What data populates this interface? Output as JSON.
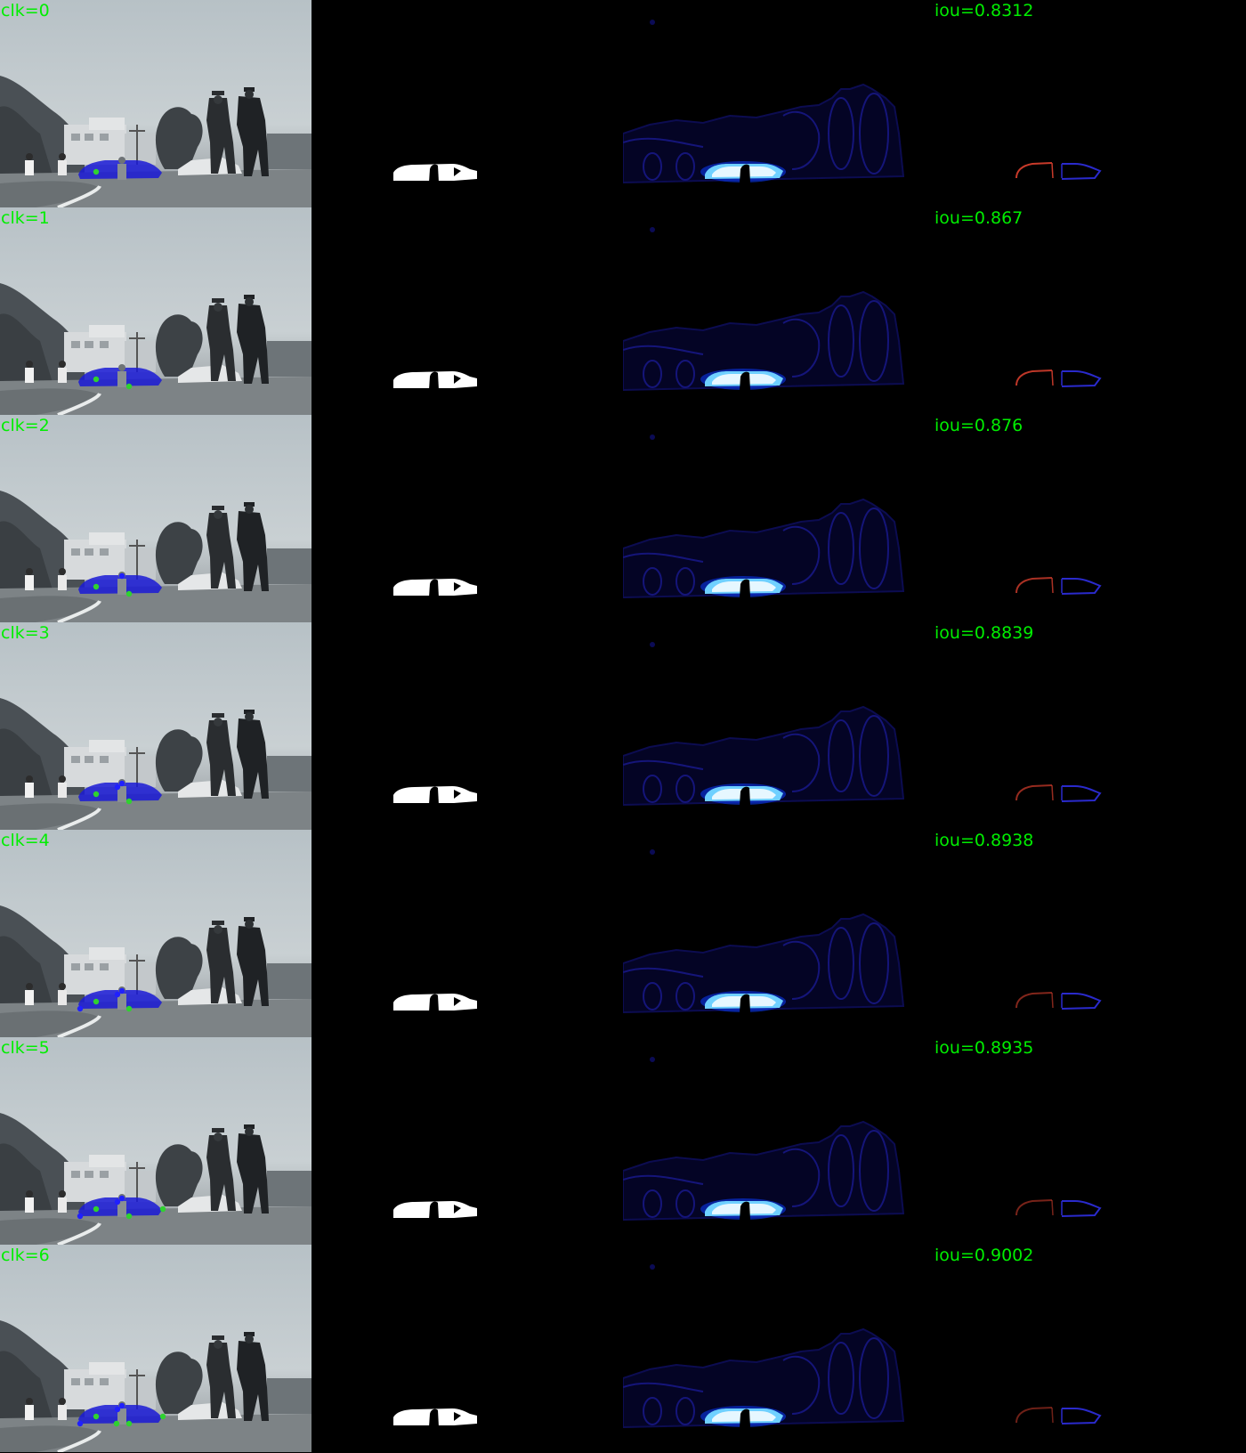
{
  "colors": {
    "label_green": "#00ee00",
    "overlay_blue": "#1a1ad6",
    "positive_click": "#2fd22f",
    "negative_click": "#2020ff",
    "heat_bright": "#e6f7ff",
    "contour_red": "#c83a2a",
    "contour_blue": "#2a2acc"
  },
  "icons": [
    "positive-click-marker",
    "negative-click-marker"
  ],
  "rows": [
    {
      "clk_label": "clk=0",
      "iou_label": "iou=0.8312",
      "positive_clicks": [
        [
          108,
          193
        ]
      ],
      "negative_clicks": [],
      "contour_red_fraction": 1.0
    },
    {
      "clk_label": "clk=1",
      "iou_label": "iou=0.867",
      "positive_clicks": [
        [
          108,
          193
        ],
        [
          145,
          201
        ]
      ],
      "negative_clicks": [],
      "contour_red_fraction": 0.95
    },
    {
      "clk_label": "clk=2",
      "iou_label": "iou=0.876",
      "positive_clicks": [
        [
          108,
          193
        ],
        [
          145,
          201
        ]
      ],
      "negative_clicks": [
        [
          137,
          181
        ]
      ],
      "contour_red_fraction": 0.85
    },
    {
      "clk_label": "clk=3",
      "iou_label": "iou=0.8839",
      "positive_clicks": [
        [
          108,
          193
        ],
        [
          145,
          201
        ]
      ],
      "negative_clicks": [
        [
          137,
          181
        ],
        [
          132,
          185
        ]
      ],
      "contour_red_fraction": 0.75
    },
    {
      "clk_label": "clk=4",
      "iou_label": "iou=0.8938",
      "positive_clicks": [
        [
          108,
          193
        ],
        [
          145,
          201
        ]
      ],
      "negative_clicks": [
        [
          137,
          181
        ],
        [
          132,
          185
        ],
        [
          90,
          201
        ]
      ],
      "contour_red_fraction": 0.65
    },
    {
      "clk_label": "clk=5",
      "iou_label": "iou=0.8935",
      "positive_clicks": [
        [
          108,
          193
        ],
        [
          145,
          201
        ],
        [
          183,
          193
        ]
      ],
      "negative_clicks": [
        [
          137,
          181
        ],
        [
          132,
          185
        ],
        [
          90,
          201
        ]
      ],
      "contour_red_fraction": 0.6
    },
    {
      "clk_label": "clk=6",
      "iou_label": "iou=0.9002",
      "positive_clicks": [
        [
          108,
          193
        ],
        [
          145,
          201
        ],
        [
          183,
          193
        ],
        [
          131,
          201
        ]
      ],
      "negative_clicks": [
        [
          137,
          181
        ],
        [
          132,
          185
        ],
        [
          90,
          201
        ]
      ],
      "contour_red_fraction": 0.55
    }
  ]
}
